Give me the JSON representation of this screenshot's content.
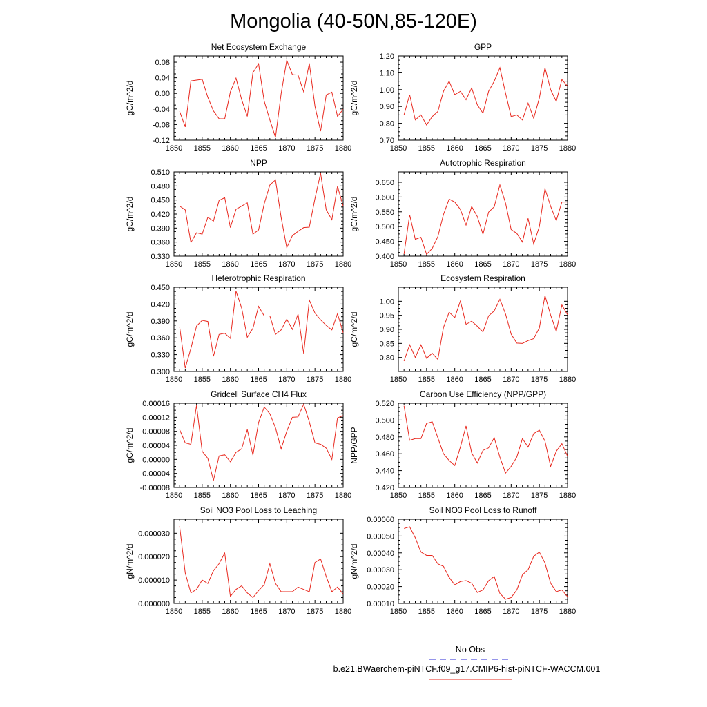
{
  "title": "Mongolia (40-50N,85-120E)",
  "legend": {
    "obs_label": "No Obs",
    "obs_color": "#2b2bd6",
    "model_label": "b.e21.BWaerchem-piNTCF.f09_g17.CMIP6-hist-piNTCF-WACCM.001",
    "model_color": "#e8281e"
  },
  "series_color": "#e8281e",
  "chart_data": [
    {
      "type": "line",
      "title": "Net Ecosystem Exchange",
      "ylabel": "gC/m^2/d",
      "xlim": [
        1850,
        1880
      ],
      "xticks": [
        "1850",
        "1855",
        "1860",
        "1865",
        "1870",
        "1875",
        "1880"
      ],
      "ylim": [
        -0.12,
        0.096
      ],
      "yticks": [
        "-0.12",
        "-0.08",
        "-0.04",
        "0.00",
        "0.04",
        "0.08"
      ],
      "x": [
        1851,
        1852,
        1853,
        1854,
        1855,
        1856,
        1857,
        1858,
        1859,
        1860,
        1861,
        1862,
        1863,
        1864,
        1865,
        1866,
        1867,
        1868,
        1869,
        1870,
        1871,
        1872,
        1873,
        1874,
        1875,
        1876,
        1877,
        1878,
        1879,
        1880
      ],
      "series": [
        {
          "values": [
            -0.046,
            -0.086,
            0.032,
            0.034,
            0.036,
            -0.01,
            -0.045,
            -0.065,
            -0.065,
            0.004,
            0.039,
            -0.016,
            -0.059,
            0.053,
            0.076,
            -0.02,
            -0.068,
            -0.113,
            -0.001,
            0.085,
            0.048,
            0.047,
            0.004,
            0.077,
            -0.033,
            -0.097,
            -0.004,
            0.003,
            -0.059,
            -0.041
          ]
        }
      ]
    },
    {
      "type": "line",
      "title": "GPP",
      "ylabel": "gC/m^2/d",
      "xlim": [
        1850,
        1880
      ],
      "xticks": [
        "1850",
        "1855",
        "1860",
        "1865",
        "1870",
        "1875",
        "1880"
      ],
      "ylim": [
        0.7,
        1.2
      ],
      "yticks": [
        "0.70",
        "0.80",
        "0.90",
        "1.00",
        "1.10",
        "1.20"
      ],
      "x": [
        1851,
        1852,
        1853,
        1854,
        1855,
        1856,
        1857,
        1858,
        1859,
        1860,
        1861,
        1862,
        1863,
        1864,
        1865,
        1866,
        1867,
        1868,
        1869,
        1870,
        1871,
        1872,
        1873,
        1874,
        1875,
        1876,
        1877,
        1878,
        1879,
        1880
      ],
      "series": [
        {
          "values": [
            0.85,
            0.97,
            0.82,
            0.85,
            0.79,
            0.84,
            0.87,
            0.99,
            1.05,
            0.97,
            0.99,
            0.94,
            1.01,
            0.91,
            0.86,
            0.99,
            1.05,
            1.13,
            0.98,
            0.84,
            0.85,
            0.82,
            0.92,
            0.83,
            0.95,
            1.13,
            1.0,
            0.93,
            1.06,
            1.02
          ]
        }
      ]
    },
    {
      "type": "line",
      "title": "NPP",
      "ylabel": "gC/m^2/d",
      "xlim": [
        1850,
        1880
      ],
      "xticks": [
        "1850",
        "1855",
        "1860",
        "1865",
        "1870",
        "1875",
        "1880"
      ],
      "ylim": [
        0.33,
        0.51
      ],
      "yticks": [
        "0.330",
        "0.360",
        "0.390",
        "0.420",
        "0.450",
        "0.480",
        "0.510"
      ],
      "x": [
        1851,
        1852,
        1853,
        1854,
        1855,
        1856,
        1857,
        1858,
        1859,
        1860,
        1861,
        1862,
        1863,
        1864,
        1865,
        1866,
        1867,
        1868,
        1869,
        1870,
        1871,
        1872,
        1873,
        1874,
        1875,
        1876,
        1877,
        1878,
        1879,
        1880
      ],
      "series": [
        {
          "values": [
            0.437,
            0.429,
            0.359,
            0.38,
            0.377,
            0.413,
            0.405,
            0.449,
            0.455,
            0.391,
            0.43,
            0.437,
            0.444,
            0.377,
            0.386,
            0.442,
            0.482,
            0.493,
            0.413,
            0.348,
            0.374,
            0.383,
            0.391,
            0.392,
            0.453,
            0.507,
            0.429,
            0.408,
            0.479,
            0.437
          ]
        }
      ]
    },
    {
      "type": "line",
      "title": "Autotrophic Respiration",
      "ylabel": "gC/m^2/d",
      "xlim": [
        1850,
        1880
      ],
      "xticks": [
        "1850",
        "1855",
        "1860",
        "1865",
        "1870",
        "1875",
        "1880"
      ],
      "ylim": [
        0.4,
        0.685
      ],
      "yticks": [
        "0.400",
        "0.450",
        "0.500",
        "0.550",
        "0.600",
        "0.650"
      ],
      "x": [
        1851,
        1852,
        1853,
        1854,
        1855,
        1856,
        1857,
        1858,
        1859,
        1860,
        1861,
        1862,
        1863,
        1864,
        1865,
        1866,
        1867,
        1868,
        1869,
        1870,
        1871,
        1872,
        1873,
        1874,
        1875,
        1876,
        1877,
        1878,
        1879,
        1880
      ],
      "series": [
        {
          "values": [
            0.407,
            0.54,
            0.457,
            0.464,
            0.406,
            0.426,
            0.466,
            0.541,
            0.593,
            0.583,
            0.558,
            0.505,
            0.568,
            0.534,
            0.474,
            0.549,
            0.567,
            0.641,
            0.58,
            0.49,
            0.477,
            0.448,
            0.528,
            0.441,
            0.5,
            0.628,
            0.569,
            0.52,
            0.583,
            0.583
          ]
        }
      ]
    },
    {
      "type": "line",
      "title": "Heterotrophic Respiration",
      "ylabel": "gC/m^2/d",
      "xlim": [
        1850,
        1880
      ],
      "xticks": [
        "1850",
        "1855",
        "1860",
        "1865",
        "1870",
        "1875",
        "1880"
      ],
      "ylim": [
        0.3,
        0.45
      ],
      "yticks": [
        "0.300",
        "0.330",
        "0.360",
        "0.390",
        "0.420",
        "0.450"
      ],
      "x": [
        1851,
        1852,
        1853,
        1854,
        1855,
        1856,
        1857,
        1858,
        1859,
        1860,
        1861,
        1862,
        1863,
        1864,
        1865,
        1866,
        1867,
        1868,
        1869,
        1870,
        1871,
        1872,
        1873,
        1874,
        1875,
        1876,
        1877,
        1878,
        1879,
        1880
      ],
      "series": [
        {
          "values": [
            0.38,
            0.306,
            0.341,
            0.381,
            0.391,
            0.389,
            0.327,
            0.366,
            0.368,
            0.359,
            0.443,
            0.413,
            0.361,
            0.377,
            0.416,
            0.399,
            0.399,
            0.366,
            0.374,
            0.393,
            0.375,
            0.402,
            0.332,
            0.427,
            0.404,
            0.392,
            0.382,
            0.374,
            0.403,
            0.369
          ]
        }
      ]
    },
    {
      "type": "line",
      "title": "Ecosystem Respiration",
      "ylabel": "gC/m^2/d",
      "xlim": [
        1850,
        1880
      ],
      "xticks": [
        "1850",
        "1855",
        "1860",
        "1865",
        "1870",
        "1875",
        "1880"
      ],
      "ylim": [
        0.75,
        1.05
      ],
      "yticks": [
        "0.80",
        "0.85",
        "0.90",
        "0.95",
        "1.00"
      ],
      "x": [
        1851,
        1852,
        1853,
        1854,
        1855,
        1856,
        1857,
        1858,
        1859,
        1860,
        1861,
        1862,
        1863,
        1864,
        1865,
        1866,
        1867,
        1868,
        1869,
        1870,
        1871,
        1872,
        1873,
        1874,
        1875,
        1876,
        1877,
        1878,
        1879,
        1880
      ],
      "series": [
        {
          "values": [
            0.787,
            0.845,
            0.8,
            0.845,
            0.797,
            0.815,
            0.793,
            0.907,
            0.961,
            0.942,
            1.001,
            0.918,
            0.929,
            0.911,
            0.891,
            0.948,
            0.966,
            1.007,
            0.955,
            0.883,
            0.851,
            0.85,
            0.86,
            0.867,
            0.905,
            1.02,
            0.951,
            0.893,
            0.987,
            0.952
          ]
        }
      ]
    },
    {
      "type": "line",
      "title": "Gridcell Surface CH4 Flux",
      "ylabel": "gC/m^2/d",
      "xlim": [
        1850,
        1880
      ],
      "xticks": [
        "1850",
        "1855",
        "1860",
        "1865",
        "1870",
        "1875",
        "1880"
      ],
      "ylim": [
        -8e-05,
        0.00016
      ],
      "yticks": [
        "-0.00008",
        "-0.00004",
        "0.00000",
        "0.00004",
        "0.00008",
        "0.00012",
        "0.00016"
      ],
      "x": [
        1851,
        1852,
        1853,
        1854,
        1855,
        1856,
        1857,
        1858,
        1859,
        1860,
        1861,
        1862,
        1863,
        1864,
        1865,
        1866,
        1867,
        1868,
        1869,
        1870,
        1871,
        1872,
        1873,
        1874,
        1875,
        1876,
        1877,
        1878,
        1879,
        1880
      ],
      "series": [
        {
          "values": [
            8.5e-05,
            4.7e-05,
            4.3e-05,
            0.000154,
            2.3e-05,
            3e-06,
            -6e-05,
            1e-05,
            1.3e-05,
            -7e-06,
            2e-05,
            3e-05,
            8.5e-05,
            1.2e-05,
            0.000105,
            0.000149,
            0.00013,
            9e-05,
            3e-05,
            8e-05,
            0.00012,
            0.000121,
            0.000157,
            0.000107,
            4.7e-05,
            4.3e-05,
            3.2e-05,
            0.0,
            0.000118,
            0.000125
          ]
        }
      ]
    },
    {
      "type": "line",
      "title": "Carbon Use Efficiency (NPP/GPP)",
      "ylabel": "NPP/GPP",
      "xlim": [
        1850,
        1880
      ],
      "xticks": [
        "1850",
        "1855",
        "1860",
        "1865",
        "1870",
        "1875",
        "1880"
      ],
      "ylim": [
        0.42,
        0.52
      ],
      "yticks": [
        "0.420",
        "0.440",
        "0.460",
        "0.480",
        "0.500",
        "0.520"
      ],
      "x": [
        1851,
        1852,
        1853,
        1854,
        1855,
        1856,
        1857,
        1858,
        1859,
        1860,
        1861,
        1862,
        1863,
        1864,
        1865,
        1866,
        1867,
        1868,
        1869,
        1870,
        1871,
        1872,
        1873,
        1874,
        1875,
        1876,
        1877,
        1878,
        1879,
        1880
      ],
      "series": [
        {
          "values": [
            0.517,
            0.476,
            0.478,
            0.478,
            0.496,
            0.498,
            0.479,
            0.46,
            0.452,
            0.446,
            0.468,
            0.493,
            0.461,
            0.449,
            0.464,
            0.467,
            0.479,
            0.456,
            0.437,
            0.445,
            0.456,
            0.478,
            0.468,
            0.484,
            0.488,
            0.475,
            0.445,
            0.463,
            0.472,
            0.457
          ]
        }
      ]
    },
    {
      "type": "line",
      "title": "Soil NO3 Pool Loss to Leaching",
      "ylabel": "gN/m^2/d",
      "xlim": [
        1850,
        1880
      ],
      "xticks": [
        "1850",
        "1855",
        "1860",
        "1865",
        "1870",
        "1875",
        "1880"
      ],
      "ylim": [
        0.0,
        3.6e-05
      ],
      "yticks": [
        "0.000000",
        "0.000010",
        "0.000020",
        "0.000030"
      ],
      "x": [
        1851,
        1852,
        1853,
        1854,
        1855,
        1856,
        1857,
        1858,
        1859,
        1860,
        1861,
        1862,
        1863,
        1864,
        1865,
        1866,
        1867,
        1868,
        1869,
        1870,
        1871,
        1872,
        1873,
        1874,
        1875,
        1876,
        1877,
        1878,
        1879,
        1880
      ],
      "series": [
        {
          "values": [
            3.3e-05,
            1.3e-05,
            4.5e-06,
            6e-06,
            1e-05,
            8.5e-06,
            1.4e-05,
            1.7e-05,
            2.15e-05,
            3e-06,
            6e-06,
            7.5e-06,
            4.5e-06,
            2.5e-06,
            5.5e-06,
            8e-06,
            1.7e-05,
            8.5e-06,
            5e-06,
            5e-06,
            5e-06,
            7e-06,
            6e-06,
            5e-06,
            1.75e-05,
            1.9e-05,
            1.15e-05,
            5e-06,
            7e-06,
            4e-06
          ]
        }
      ]
    },
    {
      "type": "line",
      "title": "Soil NO3 Pool Loss to Runoff",
      "ylabel": "gN/m^2/d",
      "xlim": [
        1850,
        1880
      ],
      "xticks": [
        "1850",
        "1855",
        "1860",
        "1865",
        "1870",
        "1875",
        "1880"
      ],
      "ylim": [
        0.0001,
        0.0006
      ],
      "yticks": [
        "0.00010",
        "0.00020",
        "0.00030",
        "0.00040",
        "0.00050",
        "0.00060"
      ],
      "x": [
        1851,
        1852,
        1853,
        1854,
        1855,
        1856,
        1857,
        1858,
        1859,
        1860,
        1861,
        1862,
        1863,
        1864,
        1865,
        1866,
        1867,
        1868,
        1869,
        1870,
        1871,
        1872,
        1873,
        1874,
        1875,
        1876,
        1877,
        1878,
        1879,
        1880
      ],
      "series": [
        {
          "values": [
            0.000545,
            0.000555,
            0.00049,
            0.000405,
            0.000385,
            0.000385,
            0.000335,
            0.00032,
            0.000255,
            0.00021,
            0.00023,
            0.000235,
            0.00022,
            0.000165,
            0.00018,
            0.000235,
            0.00026,
            0.00016,
            0.000125,
            0.000135,
            0.00018,
            0.00027,
            0.0003,
            0.00038,
            0.000405,
            0.00034,
            0.00022,
            0.00017,
            0.00018,
            0.00014
          ]
        }
      ]
    }
  ]
}
